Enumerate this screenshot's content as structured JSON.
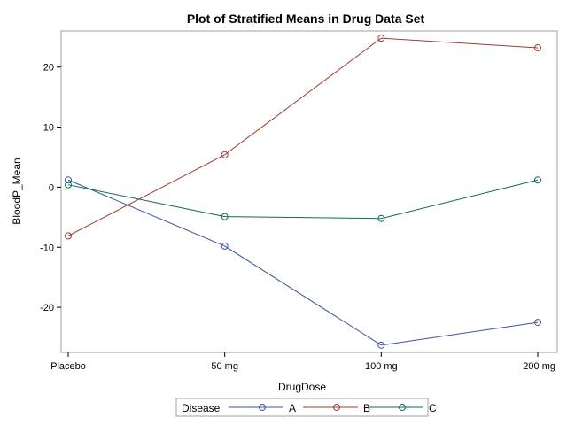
{
  "chart_data": {
    "type": "line",
    "title": "Plot of Stratified Means in Drug Data Set",
    "xlabel": "DrugDose",
    "ylabel": "BloodP_Mean",
    "categories": [
      "Placebo",
      "50 mg",
      "100 mg",
      "200 mg"
    ],
    "ylim": [
      -27.5,
      26
    ],
    "yticks": [
      -20,
      -10,
      0,
      10,
      20
    ],
    "grid": false,
    "legend": {
      "title": "Disease",
      "placement": "bottom"
    },
    "series": [
      {
        "name": "A",
        "color": "#3F51A0",
        "values": [
          1.2,
          -9.8,
          -26.3,
          -22.5
        ]
      },
      {
        "name": "B",
        "color": "#A23A2E",
        "values": [
          -8.1,
          5.4,
          24.8,
          23.2
        ]
      },
      {
        "name": "C",
        "color": "#0A6B5E",
        "values": [
          0.4,
          -4.9,
          -5.2,
          1.2
        ]
      }
    ]
  }
}
